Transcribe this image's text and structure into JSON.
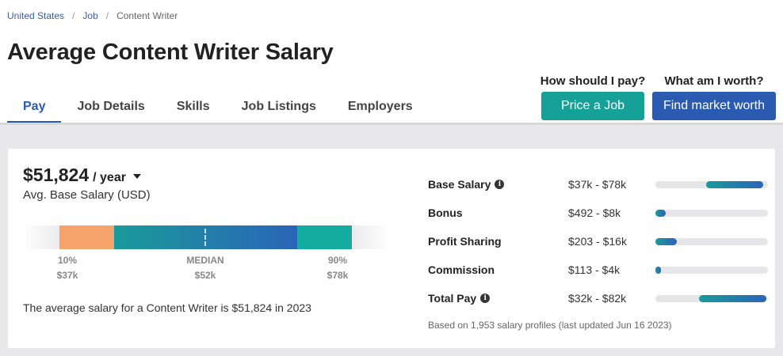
{
  "breadcrumb": [
    {
      "label": "United States"
    },
    {
      "label": "Job"
    },
    {
      "label": "Content Writer"
    }
  ],
  "title": "Average Content Writer Salary",
  "tabs": [
    {
      "label": "Pay",
      "active": true
    },
    {
      "label": "Job Details"
    },
    {
      "label": "Skills"
    },
    {
      "label": "Job Listings"
    },
    {
      "label": "Employers"
    }
  ],
  "cta": {
    "price_question": "How should I pay?",
    "price_button": "Price a Job",
    "worth_question": "What am I worth?",
    "worth_button": "Find market worth"
  },
  "salary": {
    "amount": "$51,824",
    "unit": "/ year",
    "subtitle": "Avg. Base Salary (USD)",
    "percentiles": {
      "p10_label": "10%",
      "p10_value": "$37k",
      "median_label": "MEDIAN",
      "median_value": "$52k",
      "p90_label": "90%",
      "p90_value": "$78k"
    },
    "summary": "The average salary for a Content Writer is $51,824 in 2023"
  },
  "pay_breakdown": [
    {
      "label": "Base Salary",
      "info": true,
      "range": "$37k - $78k",
      "bar_start": 0.45,
      "bar_end": 0.96
    },
    {
      "label": "Bonus",
      "info": false,
      "range": "$492 - $8k",
      "bar_start": 0.0,
      "bar_end": 0.09
    },
    {
      "label": "Profit Sharing",
      "info": false,
      "range": "$203 - $16k",
      "bar_start": 0.0,
      "bar_end": 0.19
    },
    {
      "label": "Commission",
      "info": false,
      "range": "$113 - $4k",
      "bar_start": 0.0,
      "bar_end": 0.05
    },
    {
      "label": "Total Pay",
      "info": true,
      "range": "$32k - $82k",
      "bar_start": 0.39,
      "bar_end": 0.99
    }
  ],
  "footnote": "Based on 1,953 salary profiles (last updated Jun 16 2023)",
  "colors": {
    "brand_blue": "#2a5bb0",
    "teal": "#15a198",
    "orange": "#f6a26b"
  }
}
